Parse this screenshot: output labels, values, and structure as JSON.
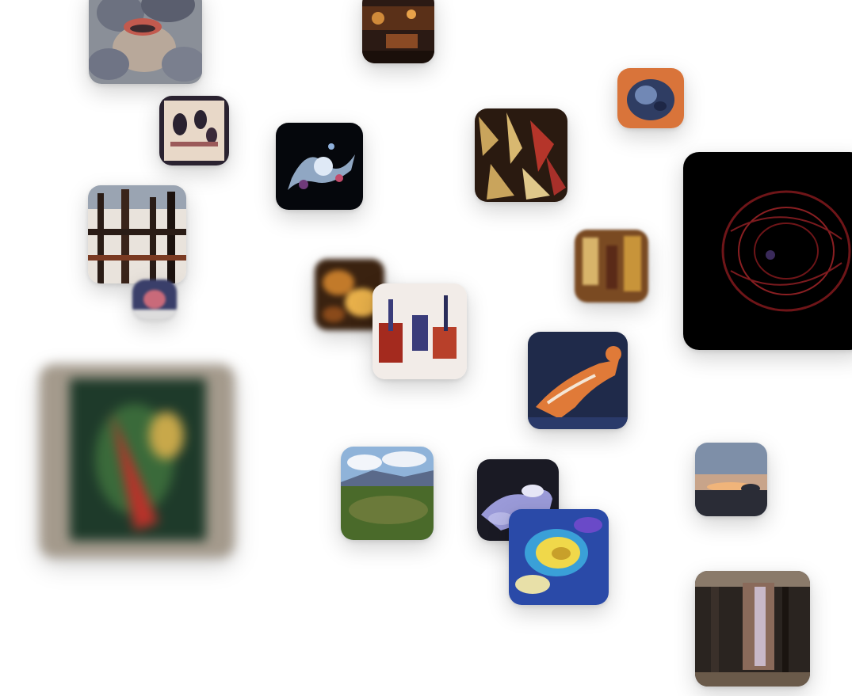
{
  "gallery": {
    "images": [
      {
        "id": "t-face",
        "icon": "portrait-artwork-icon",
        "colors": [
          "#8a8f98",
          "#c25a4e",
          "#5c5f6b"
        ]
      },
      {
        "id": "t-night",
        "icon": "night-scene-artwork-icon",
        "colors": [
          "#2b1a14",
          "#8a4a24",
          "#d08a3a"
        ]
      },
      {
        "id": "t-blob",
        "icon": "blob-artwork-icon",
        "colors": [
          "#d9743a",
          "#2f3d63",
          "#7188b5"
        ]
      },
      {
        "id": "t-sketch",
        "icon": "figures-sketch-artwork-icon",
        "colors": [
          "#e8d8c8",
          "#2a2230",
          "#9b5a5a"
        ]
      },
      {
        "id": "t-splash",
        "icon": "splash-artwork-icon",
        "colors": [
          "#05070c",
          "#a9c3e4",
          "#6f3a7a"
        ]
      },
      {
        "id": "t-crowd",
        "icon": "crowd-artwork-icon",
        "colors": [
          "#2a1a10",
          "#c9a45c",
          "#b5352a"
        ]
      },
      {
        "id": "t-brain",
        "icon": "red-wireframe-artwork-icon",
        "colors": [
          "#000000",
          "#6e1518",
          "#3a2a5a"
        ]
      },
      {
        "id": "t-grid",
        "icon": "dark-grid-artwork-icon",
        "colors": [
          "#e9e3dc",
          "#2a1c16",
          "#7a3a22"
        ]
      },
      {
        "id": "t-small",
        "icon": "small-abstract-artwork-icon",
        "colors": [
          "#3a3f6a",
          "#c96a7a",
          "#ddd"
        ]
      },
      {
        "id": "t-warm",
        "icon": "warm-abstract-artwork-icon",
        "colors": [
          "#7a4a22",
          "#d8b46a",
          "#5a2a18"
        ]
      },
      {
        "id": "t-amber",
        "icon": "amber-abstract-artwork-icon",
        "colors": [
          "#3a2210",
          "#c27a2a",
          "#e8b04a"
        ]
      },
      {
        "id": "t-abstract",
        "icon": "red-abstract-artwork-icon",
        "colors": [
          "#f2ece8",
          "#a42a1e",
          "#3a3c7a"
        ]
      },
      {
        "id": "t-figure",
        "icon": "reclining-figure-artwork-icon",
        "colors": [
          "#1f2a4a",
          "#e07a38",
          "#f4e6d6"
        ]
      },
      {
        "id": "t-frame",
        "icon": "framed-painting-artwork-icon",
        "colors": [
          "#a49a8c",
          "#1e3a2a",
          "#b8322a"
        ]
      },
      {
        "id": "t-landscape",
        "icon": "landscape-photo-icon",
        "colors": [
          "#8fb3d9",
          "#4a6a2a",
          "#6b7a3a"
        ]
      },
      {
        "id": "t-sunset",
        "icon": "sunset-photo-icon",
        "colors": [
          "#7e8fa8",
          "#f0b47a",
          "#2a2c36"
        ]
      },
      {
        "id": "t-lilac",
        "icon": "lilac-sculpture-artwork-icon",
        "colors": [
          "#1a1a24",
          "#9a9ad8",
          "#e6e6f6"
        ]
      },
      {
        "id": "t-swirl",
        "icon": "swirl-artwork-icon",
        "colors": [
          "#2a4aa8",
          "#f0d84a",
          "#3aa0d8"
        ]
      },
      {
        "id": "t-dark",
        "icon": "dark-texture-artwork-icon",
        "colors": [
          "#2a2420",
          "#8a6a5a",
          "#c8b8c8"
        ]
      }
    ]
  }
}
